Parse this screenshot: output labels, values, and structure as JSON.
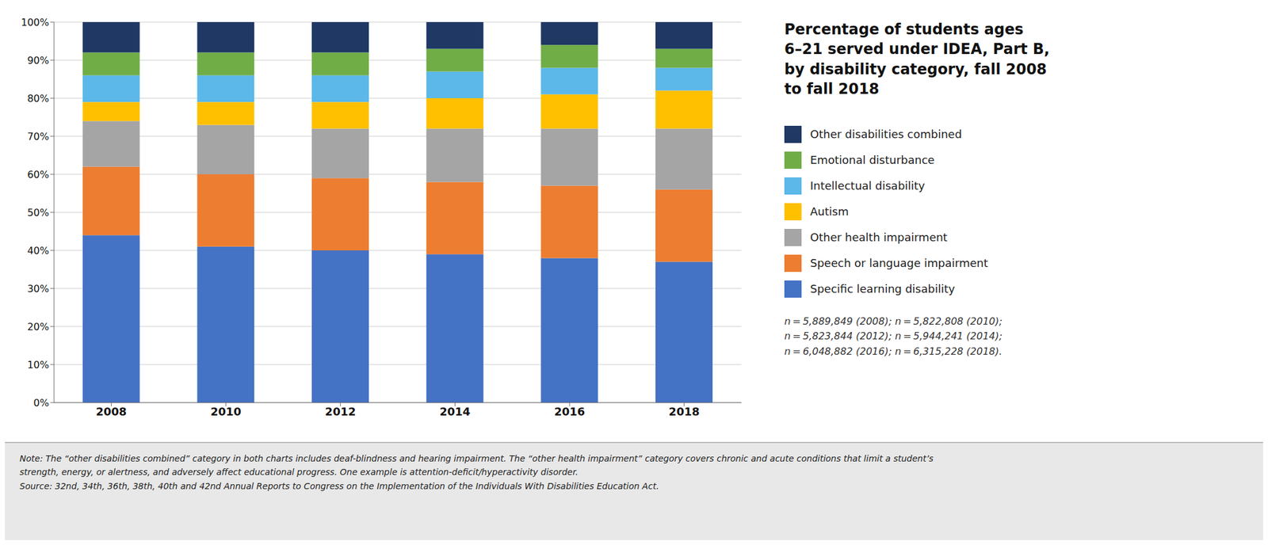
{
  "chart_data": {
    "type": "bar",
    "stacked": true,
    "title": "Percentage of students ages\n6–21 served under IDEA, Part B,\nby disability category, fall 2008\nto fall 2018",
    "categories": [
      "2008",
      "2010",
      "2012",
      "2014",
      "2016",
      "2018"
    ],
    "series": [
      {
        "name": "Specific learning disability",
        "color": "#4472C4",
        "values": [
          44,
          41,
          40,
          39,
          38,
          37
        ]
      },
      {
        "name": "Speech or language impairment",
        "color": "#ED7D31",
        "values": [
          18,
          19,
          19,
          19,
          19,
          19
        ]
      },
      {
        "name": "Other health impairment",
        "color": "#A5A5A5",
        "values": [
          12,
          13,
          13,
          14,
          15,
          16
        ]
      },
      {
        "name": "Autism",
        "color": "#FFC000",
        "values": [
          5,
          6,
          7,
          8,
          9,
          10
        ]
      },
      {
        "name": "Intellectual disability",
        "color": "#5BB8E8",
        "values": [
          7,
          7,
          7,
          7,
          7,
          6
        ]
      },
      {
        "name": "Emotional disturbance",
        "color": "#70AD47",
        "values": [
          6,
          6,
          6,
          6,
          6,
          5
        ]
      },
      {
        "name": "Other disabilities combined",
        "color": "#1F3864",
        "values": [
          8,
          8,
          8,
          7,
          6,
          7
        ]
      }
    ],
    "ylim": [
      0,
      100
    ],
    "yticks": [
      {
        "value": 0,
        "label": "0%"
      },
      {
        "value": 10,
        "label": "10%"
      },
      {
        "value": 20,
        "label": "20%"
      },
      {
        "value": 30,
        "label": "30%"
      },
      {
        "value": 40,
        "label": "40%"
      },
      {
        "value": 50,
        "label": "50%"
      },
      {
        "value": 60,
        "label": "60%"
      },
      {
        "value": 70,
        "label": "70%"
      },
      {
        "value": 80,
        "label": "80%"
      },
      {
        "value": 90,
        "label": "90%"
      },
      {
        "value": 100,
        "label": "100%"
      }
    ],
    "grid": true,
    "legend": "right",
    "annotations": [
      "n = 5,889,849 (2008); n = 5,822,808 (2010);\nn = 5,823,844 (2012); n = 5,944,241 (2014);\nn = 6,048,882 (2016); n = 6,315,228 (2018).",
      "Note: The “other disabilities combined” category in both charts includes deaf-blindness and hearing impairment. The “other health impairment” category covers chronic and acute conditions that limit a student’s\nstrength, energy, or alertness, and adversely affect educational progress. One example is attention-deficit/hyperactivity disorder.\nSource: 32nd, 34th, 36th, 38th, 40th and 42nd Annual Reports to Congress on the Implementation of the Individuals With Disabilities Education Act."
    ]
  }
}
